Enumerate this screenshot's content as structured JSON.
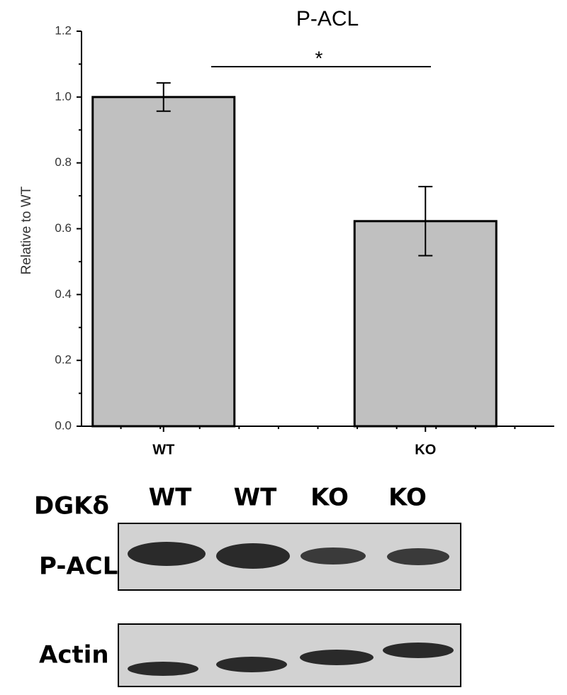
{
  "chart_data": {
    "type": "bar",
    "title": "P-ACL",
    "y_label": "Relative to WT",
    "categories": [
      "WT",
      "KO"
    ],
    "values": [
      1.0,
      0.623
    ],
    "errors": [
      0.043,
      0.105
    ],
    "color": "#c0c0c0",
    "ylim": [
      0,
      1.2
    ],
    "yticks": [
      {
        "value": 0,
        "label": "0.0"
      },
      0.2,
      0.4,
      0.6,
      0.8,
      {
        "value": 1,
        "label": "1.0"
      },
      1.2
    ],
    "significance": "*"
  },
  "blot": {
    "header": "DGKδ",
    "lanes": [
      "WT",
      "WT",
      "KO",
      "KO"
    ],
    "rows": [
      "P-ACL",
      "Actin"
    ]
  }
}
